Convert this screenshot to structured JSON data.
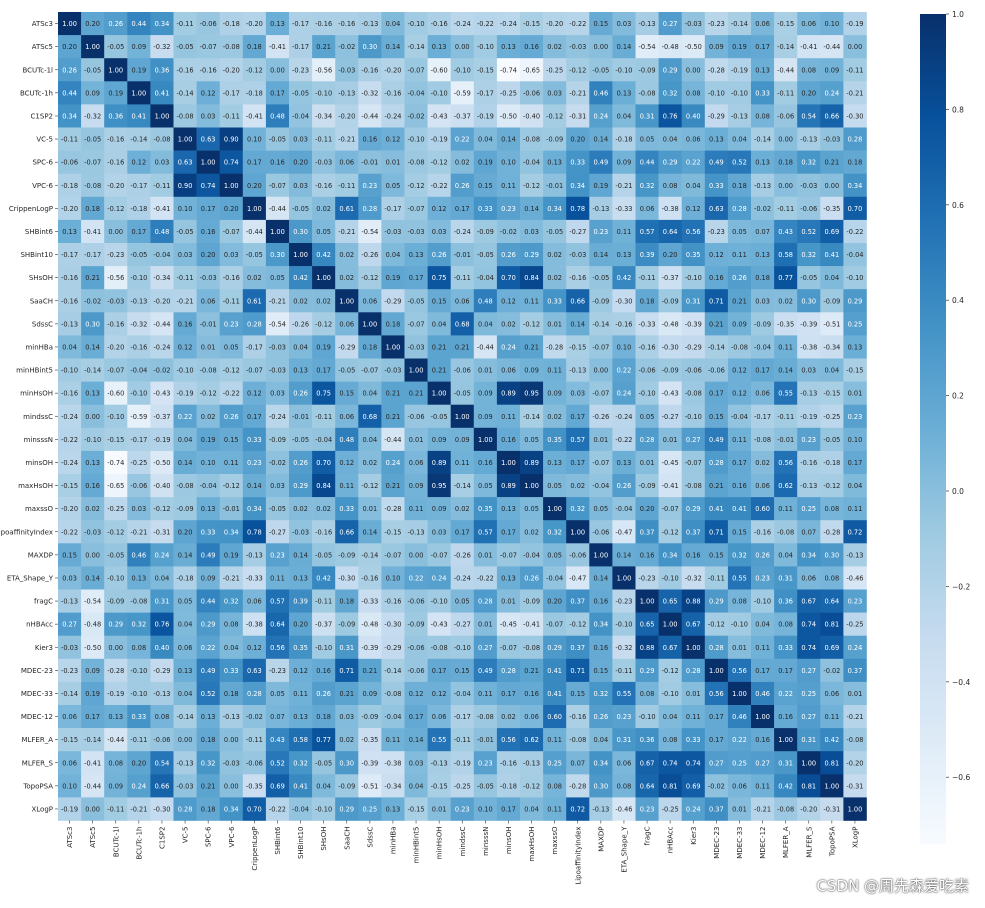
{
  "chart_data": {
    "type": "heatmap",
    "title": "",
    "labels": [
      "ATSc3",
      "ATSc5",
      "BCUTc-1l",
      "BCUTc-1h",
      "C1SP2",
      "VC-5",
      "SPC-6",
      "VPC-6",
      "CrippenLogP",
      "SHBint6",
      "SHBint10",
      "SHsOH",
      "SaaCH",
      "SdssC",
      "minHBa",
      "minHBint5",
      "minHsOH",
      "mindssC",
      "minsssN",
      "minsOH",
      "maxHsOH",
      "maxssO",
      "LipoaffinityIndex",
      "MAXDP",
      "ETA_Shape_Y",
      "fragC",
      "nHBAcc",
      "Kier3",
      "MDEC-23",
      "MDEC-33",
      "MDEC-12",
      "MLFER_A",
      "MLFER_S",
      "TopoPSA",
      "XLogP"
    ],
    "values": [
      [
        1.0,
        0.2,
        0.26,
        0.44,
        0.34,
        -0.11,
        -0.06,
        -0.18,
        -0.2,
        0.13,
        -0.17,
        -0.16,
        -0.16,
        -0.13,
        0.04,
        -0.1,
        -0.16,
        -0.24,
        -0.22,
        -0.24,
        -0.15,
        -0.2,
        -0.22,
        0.15,
        0.03,
        -0.13,
        0.27,
        -0.03,
        -0.23,
        -0.14,
        0.06,
        -0.15,
        0.06,
        0.1,
        -0.19
      ],
      [
        0.2,
        1.0,
        -0.05,
        0.09,
        -0.32,
        -0.05,
        -0.07,
        -0.08,
        0.18,
        -0.41,
        -0.17,
        0.21,
        -0.02,
        0.3,
        0.14,
        -0.14,
        0.13,
        -0.0,
        -0.1,
        0.13,
        0.16,
        0.02,
        -0.03,
        0.0,
        0.14,
        -0.54,
        -0.48,
        -0.5,
        0.09,
        0.19,
        0.17,
        -0.14,
        -0.41,
        -0.44,
        0.0
      ],
      [
        0.26,
        -0.05,
        1.0,
        0.19,
        0.36,
        -0.16,
        -0.16,
        -0.2,
        -0.12,
        -0.0,
        -0.23,
        -0.56,
        -0.03,
        -0.16,
        -0.2,
        -0.07,
        -0.6,
        -0.1,
        -0.15,
        -0.74,
        -0.65,
        -0.25,
        -0.12,
        -0.05,
        -0.1,
        -0.09,
        0.29,
        0.0,
        -0.28,
        -0.19,
        0.13,
        -0.44,
        0.08,
        0.09,
        -0.11
      ],
      [
        0.44,
        0.09,
        0.19,
        1.0,
        0.41,
        -0.14,
        0.12,
        -0.17,
        -0.18,
        0.17,
        -0.05,
        -0.1,
        -0.13,
        -0.32,
        -0.16,
        -0.04,
        -0.1,
        -0.59,
        -0.17,
        -0.25,
        -0.06,
        0.03,
        -0.21,
        0.46,
        0.13,
        -0.08,
        0.32,
        0.08,
        -0.1,
        -0.1,
        0.33,
        -0.11,
        0.2,
        0.24,
        -0.21
      ],
      [
        0.34,
        -0.32,
        0.36,
        0.41,
        1.0,
        -0.08,
        0.03,
        -0.11,
        -0.41,
        0.48,
        -0.04,
        -0.34,
        -0.2,
        -0.44,
        -0.24,
        -0.02,
        -0.43,
        -0.37,
        -0.19,
        -0.5,
        -0.4,
        -0.12,
        -0.31,
        0.24,
        0.04,
        0.31,
        0.76,
        0.4,
        -0.29,
        -0.13,
        0.08,
        -0.06,
        0.54,
        0.66,
        -0.3
      ],
      [
        -0.11,
        -0.05,
        -0.16,
        -0.14,
        -0.08,
        1.0,
        0.63,
        0.9,
        0.1,
        -0.05,
        0.03,
        -0.11,
        -0.21,
        0.16,
        0.12,
        -0.1,
        -0.19,
        0.22,
        0.04,
        0.14,
        -0.08,
        -0.09,
        0.2,
        0.14,
        -0.18,
        0.05,
        0.04,
        0.06,
        0.13,
        0.04,
        -0.14,
        0.0,
        -0.13,
        -0.03,
        0.28
      ],
      [
        -0.06,
        -0.07,
        -0.16,
        0.12,
        0.03,
        0.63,
        1.0,
        0.74,
        0.17,
        0.16,
        0.2,
        -0.03,
        0.06,
        -0.01,
        0.01,
        -0.08,
        -0.12,
        0.02,
        0.19,
        0.1,
        -0.04,
        0.13,
        0.33,
        0.49,
        0.09,
        0.44,
        0.29,
        0.22,
        0.49,
        0.52,
        0.13,
        0.18,
        0.32,
        0.21,
        0.18
      ],
      [
        -0.18,
        -0.08,
        -0.2,
        -0.17,
        -0.11,
        0.9,
        0.74,
        1.0,
        0.2,
        -0.07,
        0.03,
        -0.16,
        -0.11,
        0.23,
        0.05,
        -0.12,
        -0.22,
        0.26,
        0.15,
        0.11,
        -0.12,
        -0.01,
        0.34,
        0.19,
        -0.21,
        0.32,
        0.08,
        0.04,
        0.33,
        0.18,
        -0.13,
        0.0,
        -0.03,
        -0.0,
        0.34
      ],
      [
        -0.2,
        0.18,
        -0.12,
        -0.18,
        -0.41,
        0.1,
        0.17,
        0.2,
        1.0,
        -0.44,
        -0.05,
        0.02,
        0.61,
        0.28,
        -0.17,
        -0.07,
        0.12,
        0.17,
        0.33,
        0.23,
        0.14,
        0.34,
        0.78,
        -0.13,
        -0.33,
        0.06,
        -0.38,
        0.12,
        0.63,
        0.28,
        -0.02,
        -0.11,
        -0.06,
        -0.35,
        0.7
      ],
      [
        0.13,
        -0.41,
        -0.0,
        0.17,
        0.48,
        -0.05,
        0.16,
        -0.07,
        -0.44,
        1.0,
        0.3,
        0.05,
        -0.21,
        -0.54,
        -0.03,
        -0.03,
        0.03,
        -0.24,
        -0.09,
        -0.02,
        0.03,
        -0.05,
        -0.27,
        0.23,
        0.11,
        0.57,
        0.64,
        0.56,
        -0.23,
        0.05,
        0.07,
        0.43,
        0.52,
        0.69,
        -0.22
      ],
      [
        -0.17,
        -0.17,
        -0.23,
        -0.05,
        -0.04,
        0.03,
        0.2,
        0.03,
        -0.05,
        0.3,
        1.0,
        0.42,
        0.02,
        -0.26,
        0.04,
        0.13,
        0.26,
        -0.01,
        -0.05,
        0.26,
        0.29,
        0.02,
        -0.03,
        0.14,
        0.13,
        0.39,
        0.2,
        0.35,
        0.12,
        0.11,
        0.13,
        0.58,
        0.32,
        0.41,
        -0.04
      ],
      [
        -0.16,
        0.21,
        -0.56,
        -0.1,
        -0.34,
        -0.11,
        -0.03,
        -0.16,
        0.02,
        0.05,
        0.42,
        1.0,
        0.02,
        -0.12,
        0.19,
        0.17,
        0.75,
        -0.11,
        -0.04,
        0.7,
        0.84,
        0.02,
        -0.16,
        -0.05,
        0.42,
        -0.11,
        -0.37,
        -0.1,
        0.16,
        0.26,
        0.18,
        0.77,
        -0.05,
        0.04,
        -0.1
      ],
      [
        -0.16,
        -0.02,
        -0.03,
        -0.13,
        -0.2,
        -0.21,
        0.06,
        -0.11,
        0.61,
        -0.21,
        0.02,
        0.02,
        1.0,
        0.06,
        -0.29,
        -0.05,
        0.15,
        0.06,
        0.48,
        0.12,
        0.11,
        0.33,
        0.66,
        -0.09,
        -0.3,
        0.18,
        -0.09,
        0.31,
        0.71,
        0.21,
        0.03,
        0.02,
        0.3,
        -0.09,
        0.29
      ],
      [
        -0.13,
        0.3,
        -0.16,
        -0.32,
        -0.44,
        0.16,
        -0.01,
        0.23,
        0.28,
        -0.54,
        -0.26,
        -0.12,
        0.06,
        1.0,
        0.18,
        -0.07,
        0.04,
        0.68,
        0.04,
        0.02,
        -0.12,
        0.01,
        0.14,
        -0.14,
        -0.16,
        -0.33,
        -0.48,
        -0.39,
        0.21,
        0.09,
        -0.09,
        -0.35,
        -0.39,
        -0.51,
        0.25
      ],
      [
        0.04,
        0.14,
        -0.2,
        -0.16,
        -0.24,
        0.12,
        0.01,
        0.05,
        -0.17,
        -0.03,
        0.04,
        0.19,
        -0.29,
        0.18,
        1.0,
        -0.03,
        0.21,
        0.21,
        -0.44,
        0.24,
        0.21,
        -0.28,
        -0.15,
        -0.07,
        0.1,
        -0.16,
        -0.3,
        -0.29,
        -0.14,
        -0.08,
        -0.04,
        0.11,
        -0.38,
        -0.34,
        0.13
      ],
      [
        -0.1,
        -0.14,
        -0.07,
        -0.04,
        -0.02,
        -0.1,
        -0.08,
        -0.12,
        -0.07,
        -0.03,
        0.13,
        0.17,
        -0.05,
        -0.07,
        -0.03,
        1.0,
        0.21,
        -0.06,
        0.01,
        0.06,
        0.09,
        0.11,
        -0.13,
        0.0,
        0.22,
        -0.06,
        -0.09,
        -0.06,
        -0.06,
        0.12,
        0.17,
        0.14,
        0.03,
        0.04,
        -0.15
      ],
      [
        -0.16,
        0.13,
        -0.6,
        -0.1,
        -0.43,
        -0.19,
        -0.12,
        -0.22,
        0.12,
        0.03,
        0.26,
        0.75,
        0.15,
        0.04,
        0.21,
        0.21,
        1.0,
        -0.05,
        0.09,
        0.89,
        0.95,
        0.09,
        0.03,
        -0.07,
        0.24,
        -0.1,
        -0.43,
        -0.08,
        0.17,
        0.12,
        0.06,
        0.55,
        -0.13,
        -0.15,
        0.01
      ],
      [
        -0.24,
        -0.0,
        -0.1,
        -0.59,
        -0.37,
        0.22,
        0.02,
        0.26,
        0.17,
        -0.24,
        -0.01,
        -0.11,
        0.06,
        0.68,
        0.21,
        -0.06,
        -0.05,
        1.0,
        0.09,
        0.11,
        -0.14,
        0.02,
        0.17,
        -0.26,
        -0.24,
        0.05,
        -0.27,
        -0.1,
        0.15,
        -0.04,
        -0.17,
        -0.11,
        -0.19,
        -0.25,
        0.23
      ],
      [
        -0.22,
        -0.1,
        -0.15,
        -0.17,
        -0.19,
        0.04,
        0.19,
        0.15,
        0.33,
        -0.09,
        -0.05,
        -0.04,
        0.48,
        0.04,
        -0.44,
        0.01,
        0.09,
        0.09,
        1.0,
        0.16,
        0.05,
        0.35,
        0.57,
        0.01,
        -0.22,
        0.28,
        0.01,
        0.27,
        0.49,
        0.11,
        -0.08,
        -0.01,
        0.23,
        -0.05,
        0.1
      ],
      [
        -0.24,
        0.13,
        -0.74,
        -0.25,
        -0.5,
        0.14,
        0.1,
        0.11,
        0.23,
        -0.02,
        0.26,
        0.7,
        0.12,
        0.02,
        0.24,
        0.06,
        0.89,
        0.11,
        0.16,
        1.0,
        0.89,
        0.13,
        0.17,
        -0.07,
        0.13,
        0.01,
        -0.45,
        -0.07,
        0.28,
        0.17,
        0.02,
        0.56,
        -0.16,
        -0.18,
        0.17
      ],
      [
        -0.15,
        0.16,
        -0.65,
        -0.06,
        -0.4,
        -0.08,
        -0.04,
        -0.12,
        0.14,
        0.03,
        0.29,
        0.84,
        0.11,
        -0.12,
        0.21,
        0.09,
        0.95,
        -0.14,
        0.05,
        0.89,
        1.0,
        0.05,
        0.02,
        -0.04,
        0.26,
        -0.09,
        -0.41,
        -0.08,
        0.21,
        0.16,
        0.06,
        0.62,
        -0.13,
        -0.12,
        0.04
      ],
      [
        -0.2,
        0.02,
        -0.25,
        0.03,
        -0.12,
        -0.09,
        0.13,
        -0.01,
        0.34,
        -0.05,
        0.02,
        0.02,
        0.33,
        0.01,
        -0.28,
        0.11,
        0.09,
        0.02,
        0.35,
        0.13,
        0.05,
        1.0,
        0.32,
        0.05,
        -0.04,
        0.2,
        -0.07,
        0.29,
        0.41,
        0.41,
        0.6,
        0.11,
        0.25,
        0.08,
        0.11
      ],
      [
        -0.22,
        -0.03,
        -0.12,
        -0.21,
        -0.31,
        0.2,
        0.33,
        0.34,
        0.78,
        -0.27,
        -0.03,
        -0.16,
        0.66,
        0.14,
        -0.15,
        -0.13,
        0.03,
        0.17,
        0.57,
        0.17,
        0.02,
        0.32,
        1.0,
        -0.06,
        -0.47,
        0.37,
        -0.12,
        0.37,
        0.71,
        0.15,
        -0.16,
        -0.08,
        0.07,
        -0.28,
        0.72
      ],
      [
        0.15,
        0.0,
        -0.05,
        0.46,
        0.24,
        0.14,
        0.49,
        0.19,
        -0.13,
        0.23,
        0.14,
        -0.05,
        -0.09,
        -0.14,
        -0.07,
        0.0,
        -0.07,
        -0.26,
        0.01,
        -0.07,
        -0.04,
        0.05,
        -0.06,
        1.0,
        0.14,
        0.16,
        0.34,
        0.16,
        0.15,
        0.32,
        0.26,
        0.04,
        0.34,
        0.3,
        -0.13
      ],
      [
        0.03,
        0.14,
        -0.1,
        0.13,
        0.04,
        -0.18,
        0.09,
        -0.21,
        -0.33,
        0.11,
        0.13,
        0.42,
        -0.3,
        -0.16,
        0.1,
        0.22,
        0.24,
        -0.24,
        -0.22,
        0.13,
        0.26,
        -0.04,
        -0.47,
        0.14,
        1.0,
        -0.23,
        -0.1,
        -0.32,
        -0.11,
        0.55,
        0.23,
        0.31,
        0.06,
        0.08,
        -0.46
      ],
      [
        -0.13,
        -0.54,
        -0.09,
        -0.08,
        0.31,
        0.05,
        0.44,
        0.32,
        0.06,
        0.57,
        0.39,
        -0.11,
        0.18,
        -0.33,
        -0.16,
        -0.06,
        -0.1,
        0.05,
        0.28,
        0.01,
        -0.09,
        0.2,
        0.37,
        0.16,
        -0.23,
        1.0,
        0.65,
        0.88,
        0.29,
        0.08,
        -0.1,
        0.36,
        0.67,
        0.64,
        0.23
      ],
      [
        0.27,
        -0.48,
        0.29,
        0.32,
        0.76,
        0.04,
        0.29,
        0.08,
        -0.38,
        0.64,
        0.2,
        -0.37,
        -0.09,
        -0.48,
        -0.3,
        -0.09,
        -0.43,
        -0.27,
        0.01,
        -0.45,
        -0.41,
        -0.07,
        -0.12,
        0.34,
        -0.1,
        0.65,
        1.0,
        0.67,
        -0.12,
        -0.1,
        0.04,
        0.08,
        0.74,
        0.81,
        -0.25
      ],
      [
        -0.03,
        -0.5,
        0.0,
        0.08,
        0.4,
        0.06,
        0.22,
        0.04,
        0.12,
        0.56,
        0.35,
        -0.1,
        0.31,
        -0.39,
        -0.29,
        -0.06,
        -0.08,
        -0.1,
        0.27,
        -0.07,
        -0.08,
        0.29,
        0.37,
        0.16,
        -0.32,
        0.88,
        0.67,
        1.0,
        0.28,
        0.01,
        0.11,
        0.33,
        0.74,
        0.69,
        0.24
      ],
      [
        -0.23,
        0.09,
        -0.28,
        -0.1,
        -0.29,
        0.13,
        0.49,
        0.33,
        0.63,
        -0.23,
        0.12,
        0.16,
        0.71,
        0.21,
        -0.14,
        -0.06,
        0.17,
        0.15,
        0.49,
        0.28,
        0.21,
        0.41,
        0.71,
        0.15,
        -0.11,
        0.29,
        -0.12,
        0.28,
        1.0,
        0.56,
        0.17,
        0.17,
        0.27,
        -0.02,
        0.37
      ],
      [
        -0.14,
        0.19,
        -0.19,
        -0.1,
        -0.13,
        0.04,
        0.52,
        0.18,
        0.28,
        0.05,
        0.11,
        0.26,
        0.21,
        0.09,
        -0.08,
        0.12,
        0.12,
        -0.04,
        0.11,
        0.17,
        0.16,
        0.41,
        0.15,
        0.32,
        0.55,
        0.08,
        -0.1,
        0.01,
        0.56,
        1.0,
        0.46,
        0.22,
        0.25,
        0.06,
        0.01
      ],
      [
        0.06,
        0.17,
        0.13,
        0.33,
        0.08,
        -0.14,
        0.13,
        -0.13,
        -0.02,
        0.07,
        0.13,
        0.18,
        0.03,
        -0.09,
        -0.04,
        0.17,
        0.06,
        -0.17,
        -0.08,
        0.02,
        0.06,
        0.6,
        -0.16,
        0.26,
        0.23,
        -0.1,
        0.04,
        0.11,
        0.17,
        0.46,
        1.0,
        0.16,
        0.27,
        0.11,
        -0.21
      ],
      [
        -0.15,
        -0.14,
        -0.44,
        -0.11,
        -0.06,
        0.0,
        0.18,
        0.0,
        -0.11,
        0.43,
        0.58,
        0.77,
        0.02,
        -0.35,
        0.11,
        0.14,
        0.55,
        -0.11,
        -0.01,
        0.56,
        0.62,
        0.11,
        -0.08,
        0.04,
        0.31,
        0.36,
        0.08,
        0.33,
        0.17,
        0.22,
        0.16,
        1.0,
        0.31,
        0.42,
        -0.08
      ],
      [
        0.06,
        -0.41,
        0.08,
        0.2,
        0.54,
        -0.13,
        0.32,
        -0.03,
        -0.06,
        0.52,
        0.32,
        -0.05,
        0.3,
        -0.39,
        -0.38,
        0.03,
        -0.13,
        -0.19,
        0.23,
        -0.16,
        -0.13,
        0.25,
        0.07,
        0.34,
        0.06,
        0.67,
        0.74,
        0.74,
        0.27,
        0.25,
        0.27,
        0.31,
        1.0,
        0.81,
        -0.2
      ],
      [
        0.1,
        -0.44,
        0.09,
        0.24,
        0.66,
        -0.03,
        0.21,
        -0.0,
        -0.35,
        0.69,
        0.41,
        0.04,
        -0.09,
        -0.51,
        -0.34,
        0.04,
        -0.15,
        -0.25,
        -0.05,
        -0.18,
        -0.12,
        0.08,
        -0.28,
        0.3,
        0.08,
        0.64,
        0.81,
        0.69,
        -0.02,
        0.06,
        0.11,
        0.42,
        0.81,
        1.0,
        -0.31
      ],
      [
        -0.19,
        0.0,
        -0.11,
        -0.21,
        -0.3,
        0.28,
        0.18,
        0.34,
        0.7,
        -0.22,
        -0.04,
        -0.1,
        0.29,
        0.25,
        0.13,
        -0.15,
        0.01,
        0.23,
        0.1,
        0.17,
        0.04,
        0.11,
        0.72,
        -0.13,
        -0.46,
        0.23,
        -0.25,
        0.24,
        0.37,
        0.01,
        -0.21,
        -0.08,
        -0.2,
        -0.31,
        1.0
      ]
    ],
    "colorbar": {
      "range": [
        -0.74,
        1.0
      ],
      "ticks": [
        -0.6,
        -0.4,
        -0.2,
        0.0,
        0.2,
        0.4,
        0.6,
        0.8,
        1.0
      ],
      "tick_labels": [
        "−0.6",
        "−0.4",
        "−0.2",
        "0.0",
        "0.2",
        "0.4",
        "0.6",
        "0.8",
        "1.0"
      ]
    },
    "colormap": "Blues",
    "colors": [
      "#f7fbff",
      "#deebf7",
      "#c6dbef",
      "#9ecae1",
      "#6baed6",
      "#4292c6",
      "#2171b5",
      "#08519c",
      "#08306b"
    ],
    "annotation_precision": 2,
    "grid": false,
    "legend": "colorbar-right"
  },
  "watermark": "CSDN @周先森爱吃素"
}
